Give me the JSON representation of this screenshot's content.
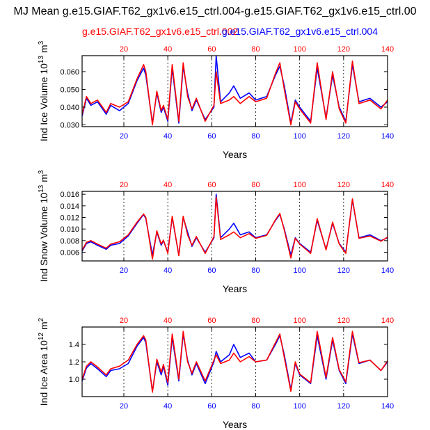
{
  "chart_data": {
    "title": "MJ Mean g.e15.GIAF.T62_gx1v6.e15_ctrl.004-g.e15.GIAF.T62_gx1v6.e15_ctrl.00",
    "legend": [
      {
        "name": "g.e15.GIAF.T62_gx1v6.e15_ctrl.002",
        "color": "#ff0000"
      },
      {
        "name": "g.e15.GIAF.T62_gx1v6.e15_ctrl.004",
        "color": "#0000ff"
      }
    ],
    "panels": [
      {
        "type": "line",
        "ylabel": "Ind Ice Volume 10",
        "ylabel_exp": "13",
        "ylabel_unit": " m",
        "ylabel_unit_exp": "3",
        "xlabel": "Years",
        "xlim": [
          1,
          140
        ],
        "ylim": [
          0.029,
          0.069
        ],
        "yticks": [
          "0.030",
          "0.040",
          "0.050",
          "0.060"
        ],
        "yticks_val": [
          0.03,
          0.04,
          0.05,
          0.06
        ],
        "xticks_top": [
          "20",
          "40",
          "60",
          "80",
          "100",
          "120",
          "140"
        ],
        "xticks_bottom": [
          "20",
          "40",
          "60",
          "80",
          "100",
          "120",
          "140"
        ],
        "grid_x": [
          20,
          40,
          60,
          80,
          100,
          120
        ],
        "series": [
          {
            "name": "ctrl.004",
            "color": "#0000ff",
            "x": [
              1,
              3,
              5,
              8,
              12,
              14,
              18,
              22,
              26,
              29,
              30,
              33,
              35,
              37,
              38,
              40,
              42,
              45,
              47,
              49,
              51,
              53,
              57,
              61,
              62,
              64,
              68,
              70,
              73,
              77,
              80,
              85,
              89,
              91,
              93,
              96,
              98,
              100,
              105,
              108,
              112,
              115,
              118,
              121,
              124,
              127,
              132,
              137,
              140
            ],
            "y": [
              0.035,
              0.045,
              0.041,
              0.043,
              0.036,
              0.041,
              0.038,
              0.042,
              0.055,
              0.062,
              0.058,
              0.031,
              0.048,
              0.037,
              0.04,
              0.032,
              0.062,
              0.031,
              0.063,
              0.048,
              0.038,
              0.044,
              0.033,
              0.04,
              0.069,
              0.043,
              0.048,
              0.052,
              0.045,
              0.048,
              0.044,
              0.046,
              0.058,
              0.063,
              0.052,
              0.031,
              0.044,
              0.04,
              0.032,
              0.062,
              0.034,
              0.058,
              0.04,
              0.032,
              0.064,
              0.043,
              0.045,
              0.04,
              0.043
            ]
          },
          {
            "name": "ctrl.002",
            "color": "#ff0000",
            "x": [
              1,
              3,
              5,
              8,
              12,
              14,
              18,
              22,
              26,
              29,
              30,
              33,
              35,
              37,
              38,
              40,
              42,
              45,
              47,
              49,
              51,
              53,
              57,
              61,
              62,
              64,
              68,
              70,
              73,
              77,
              80,
              85,
              89,
              91,
              93,
              96,
              98,
              100,
              105,
              108,
              112,
              115,
              118,
              121,
              124,
              127,
              132,
              137,
              140
            ],
            "y": [
              0.036,
              0.046,
              0.042,
              0.044,
              0.037,
              0.042,
              0.04,
              0.043,
              0.056,
              0.064,
              0.06,
              0.03,
              0.049,
              0.038,
              0.041,
              0.033,
              0.064,
              0.032,
              0.065,
              0.046,
              0.039,
              0.045,
              0.032,
              0.041,
              0.06,
              0.042,
              0.044,
              0.046,
              0.042,
              0.046,
              0.043,
              0.045,
              0.059,
              0.065,
              0.05,
              0.03,
              0.043,
              0.039,
              0.031,
              0.065,
              0.033,
              0.06,
              0.039,
              0.031,
              0.066,
              0.042,
              0.044,
              0.039,
              0.044
            ]
          }
        ]
      },
      {
        "type": "line",
        "ylabel": "Ind Snow Volume 10",
        "ylabel_exp": "13",
        "ylabel_unit": " m",
        "ylabel_unit_exp": "3",
        "xlabel": "Years",
        "xlim": [
          1,
          140
        ],
        "ylim": [
          0.0045,
          0.0165
        ],
        "yticks": [
          "0.006",
          "0.008",
          "0.010",
          "0.012",
          "0.014",
          "0.016"
        ],
        "yticks_val": [
          0.006,
          0.008,
          0.01,
          0.012,
          0.014,
          0.016
        ],
        "xticks_top": [
          "20",
          "40",
          "60",
          "80",
          "100",
          "120",
          "140"
        ],
        "xticks_bottom": [
          "20",
          "40",
          "60",
          "80",
          "100",
          "120",
          "140"
        ],
        "grid_x": [
          20,
          40,
          60,
          80,
          100,
          120
        ],
        "series": [
          {
            "name": "ctrl.004",
            "color": "#0000ff",
            "x": [
              1,
              3,
              5,
              8,
              12,
              14,
              18,
              22,
              26,
              29,
              30,
              33,
              35,
              37,
              38,
              40,
              42,
              45,
              47,
              49,
              51,
              53,
              57,
              61,
              62,
              64,
              68,
              70,
              73,
              77,
              80,
              85,
              89,
              91,
              93,
              96,
              98,
              100,
              105,
              108,
              112,
              115,
              118,
              121,
              124,
              127,
              132,
              137,
              140
            ],
            "y": [
              0.0062,
              0.0075,
              0.0078,
              0.0072,
              0.0065,
              0.0072,
              0.0075,
              0.0088,
              0.011,
              0.0125,
              0.0118,
              0.0055,
              0.0095,
              0.0072,
              0.008,
              0.006,
              0.012,
              0.0055,
              0.012,
              0.0095,
              0.007,
              0.0085,
              0.006,
              0.0085,
              0.016,
              0.0085,
              0.01,
              0.011,
              0.009,
              0.0095,
              0.0085,
              0.009,
              0.0115,
              0.0125,
              0.01,
              0.0055,
              0.0085,
              0.0075,
              0.006,
              0.0115,
              0.0065,
              0.011,
              0.0075,
              0.006,
              0.015,
              0.0085,
              0.009,
              0.008,
              0.0085
            ]
          },
          {
            "name": "ctrl.002",
            "color": "#ff0000",
            "x": [
              1,
              3,
              5,
              8,
              12,
              14,
              18,
              22,
              26,
              29,
              30,
              33,
              35,
              37,
              38,
              40,
              42,
              45,
              47,
              49,
              51,
              53,
              57,
              61,
              62,
              64,
              68,
              70,
              73,
              77,
              80,
              85,
              89,
              91,
              93,
              96,
              98,
              100,
              105,
              108,
              112,
              115,
              118,
              121,
              124,
              127,
              132,
              137,
              140
            ],
            "y": [
              0.0064,
              0.0077,
              0.008,
              0.0074,
              0.0067,
              0.0074,
              0.0078,
              0.009,
              0.0112,
              0.0126,
              0.012,
              0.0048,
              0.0097,
              0.0074,
              0.0081,
              0.0058,
              0.0122,
              0.0054,
              0.0122,
              0.009,
              0.0072,
              0.0087,
              0.0058,
              0.0087,
              0.0155,
              0.0082,
              0.009,
              0.0095,
              0.0085,
              0.0092,
              0.0084,
              0.0089,
              0.0116,
              0.0127,
              0.0098,
              0.005,
              0.0084,
              0.0074,
              0.0058,
              0.0118,
              0.0064,
              0.0112,
              0.0074,
              0.0058,
              0.0152,
              0.0084,
              0.0088,
              0.0079,
              0.0086
            ]
          }
        ]
      },
      {
        "type": "line",
        "ylabel": "Ind Ice Area 10",
        "ylabel_exp": "12",
        "ylabel_unit": " m",
        "ylabel_unit_exp": "2",
        "xlabel": "Years",
        "xlim": [
          1,
          140
        ],
        "ylim": [
          0.8,
          1.6
        ],
        "yticks": [
          "1.0",
          "1.2",
          "1.4"
        ],
        "yticks_val": [
          1.0,
          1.2,
          1.4
        ],
        "xticks_top": [
          "20",
          "40",
          "60",
          "80",
          "100",
          "120",
          "140"
        ],
        "xticks_bottom": [
          "20",
          "40",
          "60",
          "80",
          "100",
          "120",
          "140"
        ],
        "grid_x": [
          20,
          40,
          60,
          80,
          100,
          120
        ],
        "series": [
          {
            "name": "ctrl.004",
            "color": "#0000ff",
            "x": [
              1,
              3,
              5,
              8,
              12,
              14,
              18,
              22,
              26,
              29,
              30,
              33,
              35,
              37,
              38,
              40,
              42,
              45,
              47,
              49,
              51,
              53,
              57,
              61,
              62,
              64,
              68,
              70,
              73,
              77,
              80,
              85,
              89,
              91,
              93,
              96,
              98,
              100,
              105,
              108,
              112,
              115,
              118,
              121,
              124,
              127,
              132,
              137,
              140
            ],
            "y": [
              0.98,
              1.13,
              1.18,
              1.12,
              1.03,
              1.1,
              1.12,
              1.18,
              1.38,
              1.48,
              1.42,
              0.86,
              1.2,
              1.05,
              1.15,
              0.93,
              1.48,
              0.98,
              1.52,
              1.22,
              1.05,
              1.18,
              0.95,
              1.2,
              1.32,
              1.2,
              1.28,
              1.4,
              1.25,
              1.3,
              1.2,
              1.22,
              1.4,
              1.5,
              1.28,
              0.88,
              1.18,
              1.05,
              0.95,
              1.5,
              1.0,
              1.45,
              1.1,
              0.95,
              1.52,
              1.18,
              1.22,
              1.1,
              1.2
            ]
          },
          {
            "name": "ctrl.002",
            "color": "#ff0000",
            "x": [
              1,
              3,
              5,
              8,
              12,
              14,
              18,
              22,
              26,
              29,
              30,
              33,
              35,
              37,
              38,
              40,
              42,
              45,
              47,
              49,
              51,
              53,
              57,
              61,
              62,
              64,
              68,
              70,
              73,
              77,
              80,
              85,
              89,
              91,
              93,
              96,
              98,
              100,
              105,
              108,
              112,
              115,
              118,
              121,
              124,
              127,
              132,
              137,
              140
            ],
            "y": [
              1.0,
              1.15,
              1.2,
              1.14,
              1.05,
              1.12,
              1.15,
              1.22,
              1.4,
              1.5,
              1.45,
              0.85,
              1.23,
              1.08,
              1.17,
              0.96,
              1.52,
              1.0,
              1.55,
              1.2,
              1.07,
              1.2,
              0.98,
              1.22,
              1.28,
              1.18,
              1.22,
              1.3,
              1.2,
              1.26,
              1.2,
              1.22,
              1.42,
              1.52,
              1.25,
              0.86,
              1.2,
              1.06,
              0.96,
              1.55,
              1.02,
              1.48,
              1.11,
              0.97,
              1.55,
              1.19,
              1.22,
              1.1,
              1.21
            ]
          }
        ]
      }
    ]
  }
}
